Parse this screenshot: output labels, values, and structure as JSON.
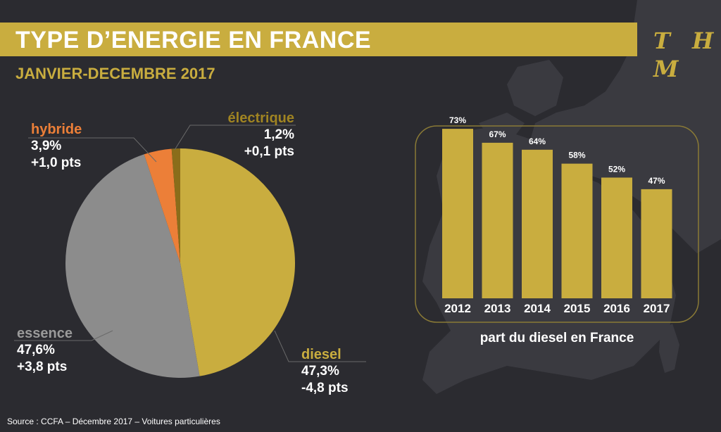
{
  "header": {
    "title": "TYPE D’ENERGIE EN FRANCE",
    "subtitle": "JANVIER-DECEMBRE 2017",
    "brand": "T H M"
  },
  "footer": {
    "source": "Source : CCFA – Décembre 2017 – Voitures particulières"
  },
  "colors": {
    "gold": "#c9ad3f",
    "gray": "#8c8c8c",
    "orange": "#ec7f38",
    "brown": "#8a6d1a",
    "background": "#2b2b30"
  },
  "chart_data": [
    {
      "type": "pie",
      "slices": [
        {
          "label": "diesel",
          "value": 47.3,
          "value_text": "47,3%",
          "change_text": "-4,8 pts",
          "color": "#c9ad3f"
        },
        {
          "label": "essence",
          "value": 47.6,
          "value_text": "47,6%",
          "change_text": "+3,8 pts",
          "color": "#8c8c8c"
        },
        {
          "label": "hybride",
          "value": 3.9,
          "value_text": "3,9%",
          "change_text": "+1,0 pts",
          "color": "#ec7f38"
        },
        {
          "label": "électrique",
          "value": 1.2,
          "value_text": "1,2%",
          "change_text": "+0,1 pts",
          "color": "#8a6d1a"
        }
      ]
    },
    {
      "type": "bar",
      "title": "part du diesel en France",
      "categories": [
        "2012",
        "2013",
        "2014",
        "2015",
        "2016",
        "2017"
      ],
      "values": [
        73,
        67,
        64,
        58,
        52,
        47
      ],
      "data_labels": [
        "73%",
        "67%",
        "64%",
        "58%",
        "52%",
        "47%"
      ],
      "ylim": [
        0,
        80
      ],
      "color": "#c9ad3f"
    }
  ]
}
